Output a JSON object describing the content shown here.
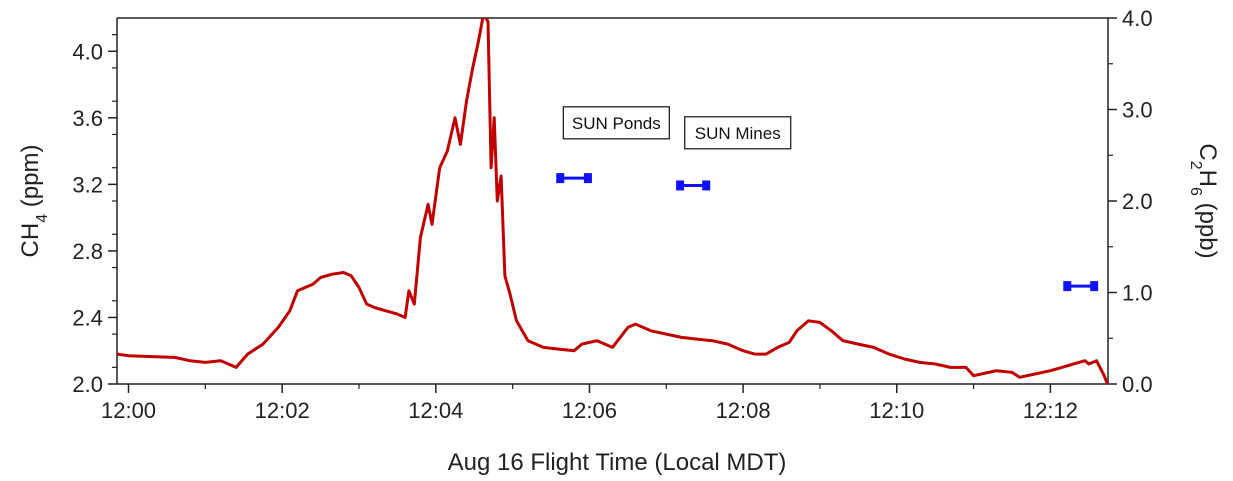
{
  "chart_data": {
    "type": "line",
    "xlabel": "Aug 16 Flight Time (Local MDT)",
    "ylabel_left": {
      "main": "CH",
      "sub": "4",
      "rest": " (ppm)"
    },
    "ylabel_right": {
      "main": "C",
      "sub1": "2",
      "mid": "H",
      "sub2": "6",
      "rest": " (ppb)"
    },
    "xlim_minutes": [
      -0.15,
      12.75
    ],
    "x_ticks": [
      {
        "minute": 0,
        "label": "12:00"
      },
      {
        "minute": 2,
        "label": "12:02"
      },
      {
        "minute": 4,
        "label": "12:04"
      },
      {
        "minute": 6,
        "label": "12:06"
      },
      {
        "minute": 8,
        "label": "12:08"
      },
      {
        "minute": 10,
        "label": "12:10"
      },
      {
        "minute": 12,
        "label": "12:12"
      }
    ],
    "ylim_left": [
      2.0,
      4.2
    ],
    "y_ticks_left": [
      {
        "value": 2.0,
        "label": "2.0"
      },
      {
        "value": 2.4,
        "label": "2.4"
      },
      {
        "value": 2.8,
        "label": "2.8"
      },
      {
        "value": 3.2,
        "label": "3.2"
      },
      {
        "value": 3.6,
        "label": "3.6"
      },
      {
        "value": 4.0,
        "label": "4.0"
      }
    ],
    "ylim_right": [
      0.0,
      4.0
    ],
    "y_ticks_right": [
      {
        "value": 0.0,
        "label": "0.0"
      },
      {
        "value": 1.0,
        "label": "1.0"
      },
      {
        "value": 2.0,
        "label": "2.0"
      },
      {
        "value": 3.0,
        "label": "3.0"
      },
      {
        "value": 4.0,
        "label": "4.0"
      }
    ],
    "series": [
      {
        "axis": "left",
        "color": "#c00000",
        "points": [
          [
            -0.15,
            2.18
          ],
          [
            0.0,
            2.17
          ],
          [
            0.3,
            2.165
          ],
          [
            0.6,
            2.16
          ],
          [
            0.8,
            2.14
          ],
          [
            1.0,
            2.13
          ],
          [
            1.2,
            2.14
          ],
          [
            1.3,
            2.12
          ],
          [
            1.4,
            2.1
          ],
          [
            1.55,
            2.18
          ],
          [
            1.75,
            2.24
          ],
          [
            1.95,
            2.34
          ],
          [
            2.1,
            2.44
          ],
          [
            2.2,
            2.56
          ],
          [
            2.4,
            2.6
          ],
          [
            2.5,
            2.64
          ],
          [
            2.65,
            2.66
          ],
          [
            2.8,
            2.67
          ],
          [
            2.9,
            2.65
          ],
          [
            3.0,
            2.58
          ],
          [
            3.1,
            2.48
          ],
          [
            3.2,
            2.46
          ],
          [
            3.35,
            2.44
          ],
          [
            3.5,
            2.42
          ],
          [
            3.6,
            2.4
          ],
          [
            3.65,
            2.56
          ],
          [
            3.72,
            2.48
          ],
          [
            3.8,
            2.88
          ],
          [
            3.9,
            3.08
          ],
          [
            3.95,
            2.96
          ],
          [
            4.05,
            3.3
          ],
          [
            4.15,
            3.4
          ],
          [
            4.25,
            3.6
          ],
          [
            4.32,
            3.44
          ],
          [
            4.4,
            3.7
          ],
          [
            4.48,
            3.9
          ],
          [
            4.55,
            4.05
          ],
          [
            4.62,
            4.22
          ],
          [
            4.68,
            4.18
          ],
          [
            4.72,
            3.3
          ],
          [
            4.76,
            3.6
          ],
          [
            4.8,
            3.1
          ],
          [
            4.85,
            3.25
          ],
          [
            4.9,
            2.65
          ],
          [
            4.96,
            2.55
          ],
          [
            5.05,
            2.38
          ],
          [
            5.2,
            2.26
          ],
          [
            5.4,
            2.22
          ],
          [
            5.6,
            2.21
          ],
          [
            5.8,
            2.2
          ],
          [
            5.9,
            2.24
          ],
          [
            6.1,
            2.26
          ],
          [
            6.3,
            2.22
          ],
          [
            6.5,
            2.34
          ],
          [
            6.6,
            2.36
          ],
          [
            6.8,
            2.32
          ],
          [
            7.0,
            2.3
          ],
          [
            7.2,
            2.28
          ],
          [
            7.4,
            2.27
          ],
          [
            7.6,
            2.26
          ],
          [
            7.8,
            2.24
          ],
          [
            8.0,
            2.2
          ],
          [
            8.15,
            2.18
          ],
          [
            8.3,
            2.18
          ],
          [
            8.45,
            2.22
          ],
          [
            8.6,
            2.25
          ],
          [
            8.7,
            2.32
          ],
          [
            8.85,
            2.38
          ],
          [
            9.0,
            2.37
          ],
          [
            9.15,
            2.32
          ],
          [
            9.3,
            2.26
          ],
          [
            9.5,
            2.24
          ],
          [
            9.7,
            2.22
          ],
          [
            9.9,
            2.18
          ],
          [
            10.1,
            2.15
          ],
          [
            10.3,
            2.13
          ],
          [
            10.5,
            2.12
          ],
          [
            10.7,
            2.1
          ],
          [
            10.9,
            2.1
          ],
          [
            11.0,
            2.05
          ],
          [
            11.1,
            2.06
          ],
          [
            11.3,
            2.08
          ],
          [
            11.5,
            2.07
          ],
          [
            11.6,
            2.04
          ],
          [
            11.8,
            2.06
          ],
          [
            12.0,
            2.08
          ],
          [
            12.15,
            2.1
          ],
          [
            12.3,
            2.12
          ],
          [
            12.45,
            2.14
          ],
          [
            12.5,
            2.12
          ],
          [
            12.6,
            2.14
          ],
          [
            12.7,
            2.05
          ],
          [
            12.75,
            1.99
          ],
          [
            12.82,
            2.04
          ]
        ]
      }
    ],
    "ethane_markers": [
      {
        "x_start": 5.62,
        "x_end": 5.98,
        "value": 2.25
      },
      {
        "x_start": 7.18,
        "x_end": 7.52,
        "value": 2.17
      },
      {
        "x_start": 12.22,
        "x_end": 12.57,
        "value": 1.07
      }
    ],
    "annotations": [
      {
        "text": "SUN Ponds",
        "x": 6.35,
        "y": 3.57
      },
      {
        "text": "SUN Mines",
        "x": 7.93,
        "y": 3.51
      }
    ],
    "grid": false,
    "legend": "none"
  }
}
